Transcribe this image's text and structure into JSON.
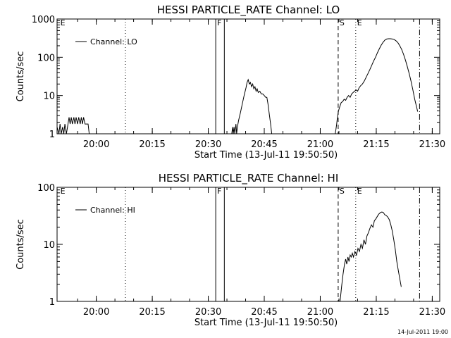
{
  "chart_data": [
    {
      "type": "line",
      "title": "HESSI PARTICLE_RATE Channel: LO",
      "xlabel": "Start Time (13-Jul-11 19:50:50)",
      "ylabel": "Counts/sec",
      "yscale": "log",
      "xlim": [
        -1.3,
        101.2
      ],
      "ylim": [
        1,
        1000
      ],
      "xticks": [
        {
          "v": 9.2,
          "label": "20:00"
        },
        {
          "v": 24.2,
          "label": "20:15"
        },
        {
          "v": 39.2,
          "label": "20:30"
        },
        {
          "v": 54.2,
          "label": "20:45"
        },
        {
          "v": 69.2,
          "label": "21:00"
        },
        {
          "v": 84.2,
          "label": "21:15"
        },
        {
          "v": 99.2,
          "label": "21:30"
        }
      ],
      "yticks": [
        {
          "v": 1,
          "label": "1"
        },
        {
          "v": 10,
          "label": "10"
        },
        {
          "v": 100,
          "label": "100"
        },
        {
          "v": 1000,
          "label": "1000"
        }
      ],
      "legend": {
        "placement": "top-left",
        "entries": [
          "Channel: LO"
        ]
      },
      "markers": [
        {
          "x": -0.8,
          "label": "E",
          "style": "none"
        },
        {
          "x": 17.0,
          "label": "",
          "style": "dotted"
        },
        {
          "x": 41.2,
          "label": "F",
          "style": "solid"
        },
        {
          "x": 43.5,
          "label": "",
          "style": "solid"
        },
        {
          "x": 74.0,
          "label": "S",
          "style": "dashed"
        },
        {
          "x": 78.7,
          "label": "E",
          "style": "dotted"
        },
        {
          "x": 95.8,
          "label": "",
          "style": "dashdot"
        }
      ],
      "series": [
        {
          "name": "Channel: LO",
          "segments": [
            [
              [
                -1.3,
                1.5
              ],
              [
                -0.8,
                1.0
              ],
              [
                -0.5,
                1.8
              ],
              [
                -0.2,
                1.0
              ],
              [
                0.2,
                1.5
              ],
              [
                0.5,
                1.0
              ],
              [
                0.8,
                1.8
              ],
              [
                1.2,
                1.0
              ],
              [
                1.5,
                1.5
              ],
              [
                1.9,
                2.7
              ],
              [
                2.2,
                1.8
              ],
              [
                2.5,
                2.7
              ],
              [
                2.8,
                1.8
              ],
              [
                3.2,
                2.7
              ],
              [
                3.5,
                1.8
              ],
              [
                3.8,
                2.7
              ],
              [
                4.2,
                1.8
              ],
              [
                4.5,
                2.7
              ],
              [
                4.9,
                1.8
              ],
              [
                5.2,
                2.7
              ],
              [
                5.5,
                1.8
              ],
              [
                5.8,
                2.7
              ],
              [
                6.2,
                1.8
              ],
              [
                7.0,
                1.8
              ],
              [
                7.3,
                1.0
              ]
            ],
            [
              [
                45.5,
                1.0
              ],
              [
                45.7,
                1.5
              ],
              [
                45.9,
                1.0
              ],
              [
                46.1,
                1.5
              ],
              [
                46.3,
                1.0
              ],
              [
                46.6,
                1.8
              ],
              [
                46.8,
                1.0
              ],
              [
                47.0,
                1.5
              ],
              [
                47.3,
                2.2
              ],
              [
                47.8,
                3.5
              ],
              [
                48.3,
                6.0
              ],
              [
                48.8,
                10.0
              ],
              [
                49.3,
                16.0
              ],
              [
                49.6,
                22.0
              ],
              [
                49.9,
                26.0
              ],
              [
                50.2,
                20.0
              ],
              [
                50.5,
                22.0
              ],
              [
                50.8,
                17.0
              ],
              [
                51.1,
                20.0
              ],
              [
                51.4,
                15.0
              ],
              [
                51.7,
                17.0
              ],
              [
                52.0,
                13.0
              ],
              [
                52.3,
                15.0
              ],
              [
                52.6,
                12.0
              ],
              [
                53.0,
                13.0
              ],
              [
                53.4,
                11.0
              ],
              [
                53.8,
                11.0
              ],
              [
                54.2,
                10.0
              ],
              [
                54.6,
                9.0
              ],
              [
                54.9,
                9.0
              ],
              [
                55.2,
                6.0
              ],
              [
                55.6,
                3.0
              ],
              [
                55.9,
                1.8
              ],
              [
                56.2,
                1.0
              ]
            ],
            [
              [
                73.2,
                1.0
              ],
              [
                73.4,
                1.3
              ],
              [
                73.6,
                1.8
              ],
              [
                73.8,
                2.7
              ],
              [
                74.1,
                4.0
              ],
              [
                74.4,
                5.0
              ],
              [
                74.8,
                6.5
              ],
              [
                75.2,
                7.0
              ],
              [
                75.6,
                8.0
              ],
              [
                76.0,
                7.5
              ],
              [
                76.4,
                9.0
              ],
              [
                76.8,
                10.0
              ],
              [
                77.2,
                9.0
              ],
              [
                77.6,
                11.0
              ],
              [
                78.0,
                12.0
              ],
              [
                78.4,
                13.0
              ],
              [
                78.8,
                14.0
              ],
              [
                79.2,
                13.0
              ],
              [
                79.6,
                16.0
              ],
              [
                80.0,
                18.0
              ],
              [
                80.5,
                20.0
              ],
              [
                81.0,
                24.0
              ],
              [
                81.5,
                30.0
              ],
              [
                82.0,
                38.0
              ],
              [
                82.5,
                48.0
              ],
              [
                83.0,
                62.0
              ],
              [
                83.5,
                80.0
              ],
              [
                84.0,
                100.0
              ],
              [
                84.5,
                130.0
              ],
              [
                85.0,
                165.0
              ],
              [
                85.5,
                205.0
              ],
              [
                86.0,
                245.0
              ],
              [
                86.5,
                280.0
              ],
              [
                87.0,
                300.0
              ],
              [
                87.5,
                305.0
              ],
              [
                88.0,
                305.0
              ],
              [
                88.5,
                300.0
              ],
              [
                89.0,
                290.0
              ],
              [
                89.5,
                270.0
              ],
              [
                90.0,
                240.0
              ],
              [
                90.5,
                200.0
              ],
              [
                91.0,
                160.0
              ],
              [
                91.5,
                120.0
              ],
              [
                92.0,
                85.0
              ],
              [
                92.5,
                58.0
              ],
              [
                93.0,
                38.0
              ],
              [
                93.5,
                24.0
              ],
              [
                94.0,
                14.0
              ],
              [
                94.5,
                8.0
              ],
              [
                95.0,
                5.0
              ],
              [
                95.3,
                3.8
              ]
            ]
          ]
        }
      ]
    },
    {
      "type": "line",
      "title": "HESSI PARTICLE_RATE Channel: HI",
      "xlabel": "Start Time (13-Jul-11 19:50:50)",
      "ylabel": "Counts/sec",
      "yscale": "log",
      "xlim": [
        -1.3,
        101.2
      ],
      "ylim": [
        1,
        100
      ],
      "xticks": [
        {
          "v": 9.2,
          "label": "20:00"
        },
        {
          "v": 24.2,
          "label": "20:15"
        },
        {
          "v": 39.2,
          "label": "20:30"
        },
        {
          "v": 54.2,
          "label": "20:45"
        },
        {
          "v": 69.2,
          "label": "21:00"
        },
        {
          "v": 84.2,
          "label": "21:15"
        },
        {
          "v": 99.2,
          "label": "21:30"
        }
      ],
      "yticks": [
        {
          "v": 1,
          "label": "1"
        },
        {
          "v": 10,
          "label": "10"
        },
        {
          "v": 100,
          "label": "100"
        }
      ],
      "legend": {
        "placement": "top-left",
        "entries": [
          "Channel: HI"
        ]
      },
      "markers": [
        {
          "x": -0.8,
          "label": "E",
          "style": "none"
        },
        {
          "x": 17.0,
          "label": "",
          "style": "dotted"
        },
        {
          "x": 41.2,
          "label": "F",
          "style": "solid"
        },
        {
          "x": 43.5,
          "label": "",
          "style": "solid"
        },
        {
          "x": 74.0,
          "label": "S",
          "style": "dashed"
        },
        {
          "x": 78.7,
          "label": "E",
          "style": "dotted"
        },
        {
          "x": 95.8,
          "label": "",
          "style": "dashdot"
        }
      ],
      "series": [
        {
          "name": "Channel: HI",
          "segments": [
            [
              [
                74.5,
                1.0
              ],
              [
                74.9,
                1.8
              ],
              [
                75.3,
                3.0
              ],
              [
                75.7,
                4.5
              ],
              [
                76.0,
                5.5
              ],
              [
                76.3,
                4.5
              ],
              [
                76.6,
                6.0
              ],
              [
                76.9,
                5.0
              ],
              [
                77.2,
                6.5
              ],
              [
                77.5,
                6.0
              ],
              [
                77.8,
                7.0
              ],
              [
                78.1,
                6.0
              ],
              [
                78.5,
                7.5
              ],
              [
                78.9,
                6.5
              ],
              [
                79.3,
                8.5
              ],
              [
                79.7,
                7.5
              ],
              [
                80.1,
                10.0
              ],
              [
                80.5,
                8.5
              ],
              [
                80.9,
                12.0
              ],
              [
                81.3,
                10.0
              ],
              [
                81.7,
                14.0
              ],
              [
                82.1,
                16.0
              ],
              [
                82.5,
                19.0
              ],
              [
                82.9,
                22.0
              ],
              [
                83.3,
                20.0
              ],
              [
                83.7,
                26.0
              ],
              [
                84.1,
                28.0
              ],
              [
                84.5,
                31.0
              ],
              [
                84.9,
                34.0
              ],
              [
                85.3,
                36.0
              ],
              [
                85.7,
                37.0
              ],
              [
                86.1,
                36.0
              ],
              [
                86.5,
                33.0
              ],
              [
                86.9,
                32.0
              ],
              [
                87.3,
                30.0
              ],
              [
                87.7,
                27.0
              ],
              [
                88.1,
                22.0
              ],
              [
                88.5,
                17.0
              ],
              [
                88.9,
                12.0
              ],
              [
                89.3,
                8.0
              ],
              [
                89.7,
                5.0
              ],
              [
                90.1,
                3.5
              ],
              [
                90.5,
                2.5
              ],
              [
                90.9,
                1.8
              ]
            ]
          ]
        }
      ]
    }
  ],
  "footer": {
    "stamp": "14-Jul-2011 19:00"
  },
  "style": {
    "ink": "#000000",
    "background": "#ffffff"
  }
}
